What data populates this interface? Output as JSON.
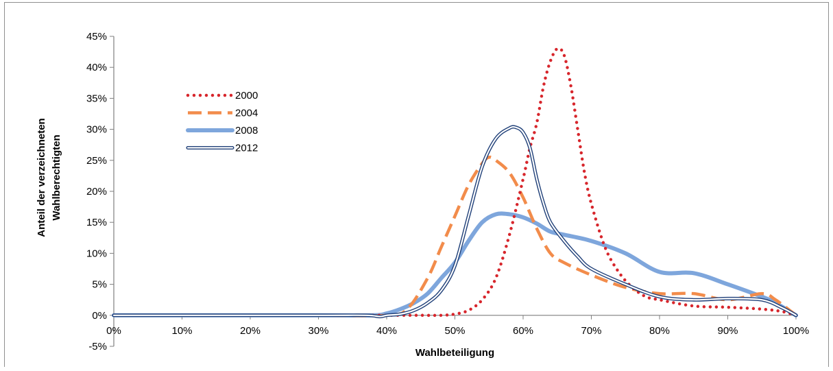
{
  "chart_data": {
    "type": "line",
    "title": "",
    "xlabel": "Wahlbeteiligung",
    "ylabel_lines": [
      "Anteil der verzeichneten",
      "Wahlberechtigten"
    ],
    "xlim": [
      0,
      100
    ],
    "ylim": [
      -5,
      45
    ],
    "x_ticks": [
      0,
      10,
      20,
      30,
      40,
      50,
      60,
      70,
      80,
      90,
      100
    ],
    "x_tick_labels": [
      "0%",
      "10%",
      "20%",
      "30%",
      "40%",
      "50%",
      "60%",
      "70%",
      "80%",
      "90%",
      "100%"
    ],
    "y_ticks": [
      -5,
      0,
      5,
      10,
      15,
      20,
      25,
      30,
      35,
      40,
      45
    ],
    "y_tick_labels": [
      "-5%",
      "0%",
      "5%",
      "10%",
      "15%",
      "20%",
      "25%",
      "30%",
      "35%",
      "40%",
      "45%"
    ],
    "grid": false,
    "legend_position": "upper-left",
    "series": [
      {
        "name": "2000",
        "style": "dotted",
        "color": "#d7262c",
        "points": [
          [
            0,
            0
          ],
          [
            30,
            0
          ],
          [
            40,
            0
          ],
          [
            45,
            0
          ],
          [
            48,
            0
          ],
          [
            50,
            0.2
          ],
          [
            52,
            0.8
          ],
          [
            54,
            2.5
          ],
          [
            56,
            6
          ],
          [
            58,
            13
          ],
          [
            60,
            22
          ],
          [
            61,
            27
          ],
          [
            62,
            31
          ],
          [
            63,
            37
          ],
          [
            64,
            41
          ],
          [
            65,
            43
          ],
          [
            66,
            42
          ],
          [
            67,
            37
          ],
          [
            68,
            30
          ],
          [
            69,
            23
          ],
          [
            70,
            18
          ],
          [
            72,
            11
          ],
          [
            74,
            7
          ],
          [
            76,
            4.5
          ],
          [
            78,
            3
          ],
          [
            80,
            2.5
          ],
          [
            85,
            1.5
          ],
          [
            90,
            1.3
          ],
          [
            95,
            1
          ],
          [
            98,
            0.6
          ],
          [
            100,
            0
          ]
        ]
      },
      {
        "name": "2004",
        "style": "dashed",
        "color": "#f28c4b",
        "points": [
          [
            0,
            0
          ],
          [
            30,
            0
          ],
          [
            40,
            0
          ],
          [
            43,
            1
          ],
          [
            46,
            6
          ],
          [
            48,
            11
          ],
          [
            50,
            16
          ],
          [
            52,
            21
          ],
          [
            54,
            24.5
          ],
          [
            55,
            25.5
          ],
          [
            56,
            25
          ],
          [
            58,
            23
          ],
          [
            60,
            19
          ],
          [
            62,
            14
          ],
          [
            64,
            10
          ],
          [
            66,
            8.5
          ],
          [
            70,
            6.5
          ],
          [
            75,
            4.5
          ],
          [
            80,
            3.5
          ],
          [
            85,
            3.5
          ],
          [
            90,
            2.5
          ],
          [
            95,
            3.5
          ],
          [
            97,
            2.5
          ],
          [
            100,
            0
          ]
        ]
      },
      {
        "name": "2008",
        "style": "thick",
        "color": "#7ea6dc",
        "points": [
          [
            0,
            0
          ],
          [
            30,
            0
          ],
          [
            38,
            0
          ],
          [
            40,
            0.3
          ],
          [
            42,
            1
          ],
          [
            44,
            2
          ],
          [
            46,
            3.5
          ],
          [
            48,
            6
          ],
          [
            50,
            8.5
          ],
          [
            52,
            12
          ],
          [
            54,
            15
          ],
          [
            56,
            16.3
          ],
          [
            58,
            16.3
          ],
          [
            60,
            15.8
          ],
          [
            62,
            14.8
          ],
          [
            64,
            13.5
          ],
          [
            66,
            13
          ],
          [
            70,
            12
          ],
          [
            75,
            10
          ],
          [
            80,
            7
          ],
          [
            85,
            6.8
          ],
          [
            90,
            5
          ],
          [
            95,
            3
          ],
          [
            97,
            2
          ],
          [
            100,
            0
          ]
        ]
      },
      {
        "name": "2012",
        "style": "double",
        "color": "#1f3f78",
        "points": [
          [
            0,
            0
          ],
          [
            30,
            0
          ],
          [
            37,
            0
          ],
          [
            39,
            -0.2
          ],
          [
            40,
            0
          ],
          [
            42,
            0.2
          ],
          [
            44,
            0.8
          ],
          [
            46,
            2
          ],
          [
            48,
            4
          ],
          [
            50,
            8
          ],
          [
            52,
            16
          ],
          [
            54,
            24
          ],
          [
            56,
            28.5
          ],
          [
            58,
            30.2
          ],
          [
            59,
            30.3
          ],
          [
            60,
            29.5
          ],
          [
            61,
            27
          ],
          [
            62,
            22
          ],
          [
            63,
            18
          ],
          [
            64,
            15
          ],
          [
            66,
            12
          ],
          [
            68,
            9.5
          ],
          [
            70,
            7.5
          ],
          [
            75,
            5
          ],
          [
            80,
            3
          ],
          [
            85,
            2.5
          ],
          [
            90,
            2.7
          ],
          [
            95,
            2.5
          ],
          [
            98,
            1.2
          ],
          [
            100,
            0
          ]
        ]
      }
    ]
  }
}
